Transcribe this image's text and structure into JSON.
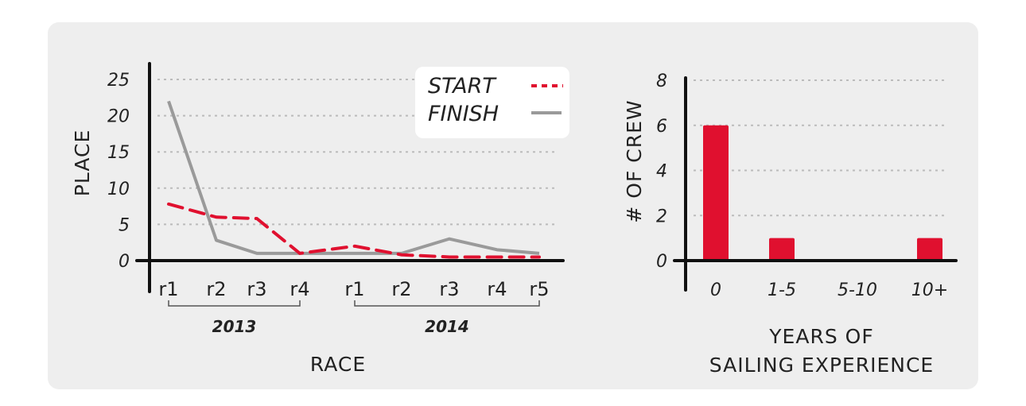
{
  "colors": {
    "start": "#e0102f",
    "finish": "#9a9a9a",
    "bar": "#e0102f",
    "grid": "#bbbbbb",
    "axis": "#111111",
    "panel": "#eeeeee"
  },
  "chart_data": [
    {
      "type": "line",
      "xlabel": "RACE",
      "ylabel": "PLACE",
      "ylim": [
        0,
        25
      ],
      "yticks": [
        "25",
        "20",
        "15",
        "10",
        "5",
        "0"
      ],
      "categories": [
        "r1",
        "r2",
        "r3",
        "r4",
        "r1",
        "r2",
        "r3",
        "r4",
        "r5"
      ],
      "groups": [
        {
          "label": "2013",
          "from": 0,
          "to": 3
        },
        {
          "label": "2014",
          "from": 4,
          "to": 8
        }
      ],
      "legend_position": "top-right",
      "grid": true,
      "series": [
        {
          "name": "START",
          "style": "dashed",
          "values": [
            7.8,
            6,
            5.8,
            1,
            2,
            0.8,
            0.5,
            0.5,
            0.5
          ]
        },
        {
          "name": "FINISH",
          "style": "solid",
          "values": [
            22,
            2.8,
            1,
            1,
            1,
            1,
            3,
            1.5,
            1
          ]
        }
      ]
    },
    {
      "type": "bar",
      "xlabel_lines": [
        "YEARS OF",
        "SAILING EXPERIENCE"
      ],
      "ylabel": "# OF CREW",
      "ylim": [
        0,
        8
      ],
      "yticks": [
        "8",
        "6",
        "4",
        "2",
        "0"
      ],
      "categories": [
        "0",
        "1-5",
        "5-10",
        "10+"
      ],
      "values": [
        6,
        1,
        0,
        1
      ],
      "grid": true
    }
  ]
}
